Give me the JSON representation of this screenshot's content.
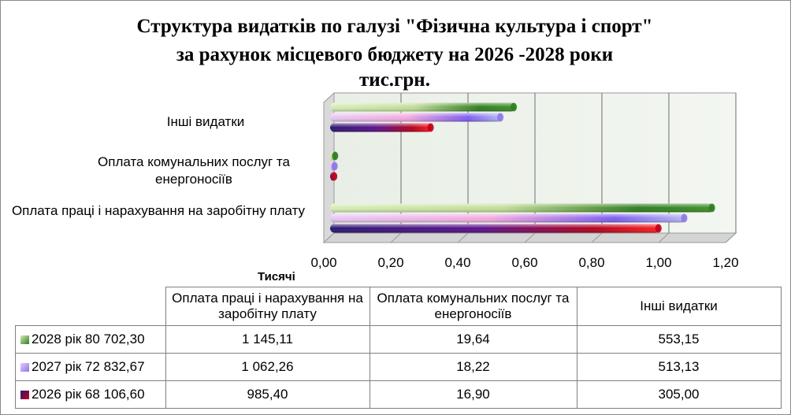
{
  "chart_data": {
    "type": "bar",
    "title_lines": [
      "Структура видатків по галузі  \"Фізична культура і спорт\"",
      "за рахунок місцевого бюджету на 2026 -2028 роки",
      "тис.грн."
    ],
    "units": "Тисячі",
    "categories": [
      "Оплата праці і нарахування на заробітну плату",
      "Оплата комунальних послуг та енергоносіїв",
      "Інші видатки"
    ],
    "x_ticks": [
      "0,00",
      "0,20",
      "0,40",
      "0,60",
      "0,80",
      "1,00",
      "1,20"
    ],
    "xlim": [
      0,
      1.2
    ],
    "grid": true,
    "series": [
      {
        "name": "2028 рік 80 702,30",
        "color": "#2f7d1f",
        "values": [
          1.14511,
          0.01964,
          0.55315
        ],
        "labels": [
          "1 145,11",
          "19,64",
          "553,15"
        ]
      },
      {
        "name": "2027 рік 72 832,67",
        "color": "#8c78e8",
        "values": [
          1.06226,
          0.01822,
          0.51313
        ],
        "labels": [
          "1 062,26",
          "18,22",
          "513,13"
        ]
      },
      {
        "name": "2026 рік 68 106,60",
        "color": "#c0001a",
        "values": [
          0.9854,
          0.0169,
          0.305
        ],
        "labels": [
          "985,40",
          "16,90",
          "305,00"
        ]
      }
    ]
  }
}
